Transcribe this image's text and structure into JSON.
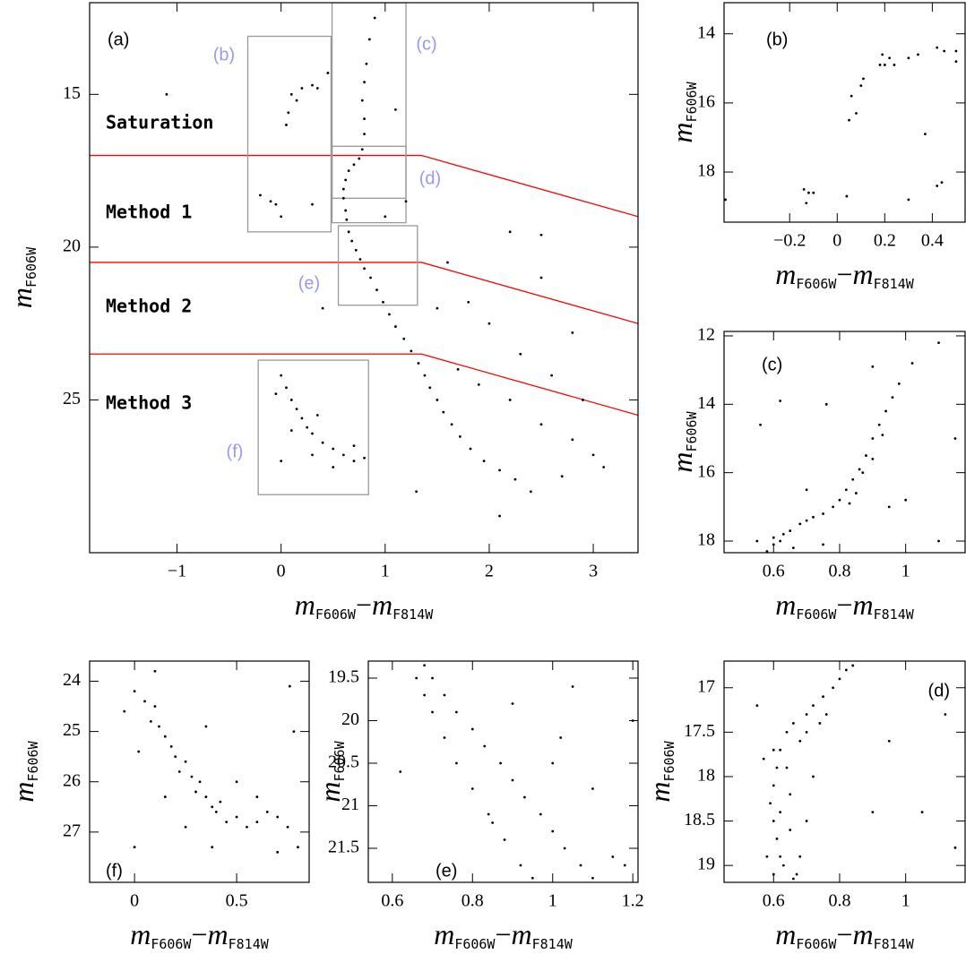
{
  "chart_data": [
    {
      "type": "scatter",
      "label": "(a)",
      "color": "#000000",
      "xlabel": [
        "m",
        "F606W",
        "−",
        "m",
        "F814W"
      ],
      "ylabel": [
        "m",
        "F606W"
      ],
      "xlim": [
        -1.84,
        3.43
      ],
      "ylim": [
        30,
        12
      ],
      "xticks": [
        {
          "value": -1,
          "label": "−1"
        },
        0,
        1,
        2,
        3
      ],
      "yticks": [
        15,
        20,
        25
      ],
      "annotations": [
        "Saturation",
        "Method 1",
        "Method 2",
        "Method 3"
      ],
      "boundary_color": "#ff0000",
      "boundaries": [
        {
          "x": [
            -1.84,
            1.35,
            3.43
          ],
          "y": [
            17,
            17,
            19
          ]
        },
        {
          "x": [
            -1.84,
            1.35,
            3.43
          ],
          "y": [
            20.5,
            20.5,
            22.5
          ]
        },
        {
          "x": [
            -1.84,
            1.35,
            3.43
          ],
          "y": [
            23.5,
            23.5,
            25.5
          ]
        }
      ],
      "box_color": "#999999",
      "box_label_color": "#9999ee",
      "boxes": [
        {
          "label": "(b)",
          "xlim": [
            -0.32,
            0.48
          ],
          "ylim": [
            19.5,
            13.1
          ]
        },
        {
          "label": "(c)",
          "xlim": [
            0.49,
            1.2
          ],
          "ylim": [
            19.2,
            12
          ]
        },
        {
          "label": "(d)",
          "xlim": [
            0.49,
            1.2
          ],
          "ylim": [
            18.4,
            16.7
          ]
        },
        {
          "label": "(e)",
          "xlim": [
            0.55,
            1.31
          ],
          "ylim": [
            21.9,
            19.3
          ]
        },
        {
          "label": "(f)",
          "xlim": [
            -0.22,
            0.84
          ],
          "ylim": [
            28.1,
            23.7
          ]
        }
      ],
      "x": [
        0.9,
        0.85,
        0.82,
        0.8,
        0.78,
        0.8,
        0.8,
        0.78,
        0.75,
        0.7,
        0.65,
        0.62,
        0.6,
        0.6,
        0.62,
        0.63,
        0.65,
        0.68,
        0.72,
        0.76,
        0.8,
        0.86,
        0.92,
        0.98,
        1.04,
        1.1,
        1.18,
        1.25,
        1.32,
        1.38,
        1.43,
        1.5,
        1.56,
        1.64,
        1.72,
        1.82,
        1.95,
        2.1,
        2.25,
        1.7,
        1.9,
        2.2,
        2.5,
        2.8,
        2.3,
        2.0,
        1.8,
        2.6,
        3.0,
        2.7,
        2.4,
        1.5,
        1.6,
        2.2,
        1.2,
        1.0,
        2.9,
        3.1,
        2.1,
        0.0,
        0.05,
        0.1,
        0.15,
        0.2,
        0.25,
        0.3,
        0.4,
        0.5,
        0.6,
        0.7,
        0.8,
        0.1,
        0.3,
        0.5,
        0.7,
        -0.05,
        0.35,
        0.0,
        0.1,
        0.15,
        0.2,
        0.3,
        0.35,
        0.05,
        0.07,
        -0.1,
        -0.05,
        0.0,
        0.3,
        0.45,
        -1.1,
        -0.2,
        0.4,
        1.1,
        2.5,
        1.3,
        2.8,
        2.5
      ],
      "y": [
        12.5,
        13.2,
        14.0,
        14.6,
        15.2,
        15.8,
        16.3,
        16.8,
        17.1,
        17.3,
        17.5,
        17.8,
        18.1,
        18.4,
        18.8,
        19.1,
        19.5,
        19.8,
        20.1,
        20.4,
        20.7,
        21.0,
        21.4,
        21.8,
        22.2,
        22.6,
        23.0,
        23.4,
        23.8,
        24.2,
        24.6,
        25.0,
        25.4,
        25.8,
        26.2,
        26.6,
        27.0,
        27.3,
        27.6,
        24.0,
        24.5,
        25.0,
        25.8,
        26.3,
        23.5,
        22.5,
        21.8,
        24.2,
        26.8,
        27.5,
        28.0,
        22.0,
        20.5,
        19.5,
        18.5,
        19.0,
        25.0,
        27.2,
        28.8,
        24.2,
        24.6,
        25.0,
        25.3,
        25.6,
        25.9,
        26.1,
        26.4,
        26.6,
        26.8,
        27.0,
        26.9,
        26.0,
        26.8,
        27.2,
        26.5,
        24.8,
        25.5,
        27.0,
        15.0,
        15.2,
        14.8,
        14.7,
        14.8,
        16.0,
        15.6,
        18.5,
        18.6,
        19.0,
        18.6,
        14.3,
        15.0,
        18.3,
        22.0,
        15.5,
        21.0,
        28.0,
        22.8,
        19.6
      ]
    },
    {
      "type": "scatter",
      "label": "(b)",
      "color": "#000000",
      "xlabel": [
        "m",
        "F606W",
        "−",
        "m",
        "F814W"
      ],
      "ylabel": [
        "m",
        "F606W"
      ],
      "xlim": [
        -0.476,
        0.538
      ],
      "ylim": [
        19.45,
        13.1
      ],
      "xticks": [
        {
          "value": -0.2,
          "label": "−0.2"
        },
        0,
        0.2,
        0.4
      ],
      "yticks": [
        14,
        16,
        18
      ],
      "x": [
        -0.47,
        -0.14,
        -0.12,
        -0.1,
        -0.13,
        0.04,
        0.05,
        0.06,
        0.08,
        0.1,
        0.11,
        0.18,
        0.19,
        0.2,
        0.22,
        0.24,
        0.3,
        0.34,
        0.37,
        0.42,
        0.44,
        0.42,
        0.45,
        0.5,
        0.3,
        0.5
      ],
      "y": [
        18.8,
        18.5,
        18.6,
        18.6,
        18.9,
        18.7,
        16.5,
        15.8,
        16.3,
        15.5,
        15.3,
        14.9,
        14.6,
        14.9,
        14.7,
        14.9,
        14.7,
        14.6,
        16.9,
        18.4,
        18.3,
        14.4,
        14.5,
        14.5,
        18.8,
        14.8
      ]
    },
    {
      "type": "scatter",
      "label": "(c)",
      "color": "#000000",
      "xlabel": [
        "m",
        "F606W",
        "−",
        "m",
        "F814W"
      ],
      "ylabel": [
        "m",
        "F606W"
      ],
      "xlim": [
        0.45,
        1.18
      ],
      "ylim": [
        18.34,
        11.87
      ],
      "xticks": [
        0.6,
        0.8,
        1
      ],
      "yticks": [
        12,
        14,
        16,
        18
      ],
      "x": [
        0.58,
        0.6,
        0.62,
        0.6,
        0.63,
        0.65,
        0.68,
        0.7,
        0.72,
        0.75,
        0.78,
        0.8,
        0.82,
        0.84,
        0.86,
        0.88,
        0.9,
        0.92,
        0.94,
        0.96,
        0.98,
        1.02,
        0.85,
        0.87,
        0.83,
        0.9,
        0.93,
        0.55,
        0.62,
        0.56,
        0.76,
        0.9,
        1.1,
        0.95,
        1.0,
        1.1,
        0.75,
        0.7,
        1.15,
        0.66
      ],
      "y": [
        18.3,
        18.1,
        18.0,
        17.9,
        17.8,
        17.7,
        17.5,
        17.4,
        17.3,
        17.2,
        17.0,
        16.8,
        16.5,
        16.2,
        15.9,
        15.5,
        15.0,
        14.6,
        14.2,
        13.8,
        13.4,
        12.8,
        16.6,
        16.0,
        16.9,
        15.6,
        14.9,
        18.0,
        13.9,
        14.6,
        14.0,
        12.9,
        12.2,
        17.0,
        16.8,
        18.0,
        18.1,
        16.5,
        15.0,
        18.2
      ]
    },
    {
      "type": "scatter",
      "label": "(d)",
      "color": "#000000",
      "xlabel": [
        "m",
        "F606W",
        "−",
        "m",
        "F814W"
      ],
      "ylabel": [
        "m",
        "F606W"
      ],
      "xlim": [
        0.45,
        1.18
      ],
      "ylim": [
        19.19,
        16.7
      ],
      "xticks": [
        0.6,
        0.8,
        1
      ],
      "yticks": [
        17,
        17.5,
        18,
        18.5,
        19
      ],
      "x": [
        0.6,
        0.62,
        0.61,
        0.6,
        0.59,
        0.6,
        0.61,
        0.62,
        0.64,
        0.66,
        0.65,
        0.63,
        0.66,
        0.68,
        0.7,
        0.72,
        0.75,
        0.78,
        0.8,
        0.82,
        0.7,
        0.74,
        0.68,
        0.55,
        0.57,
        0.72,
        0.7,
        0.9,
        0.95,
        1.05,
        1.15,
        1.12,
        0.65,
        0.62,
        0.58,
        0.64,
        0.76,
        0.84,
        0.6,
        0.67
      ],
      "y": [
        19.1,
        18.9,
        18.7,
        18.5,
        18.3,
        18.1,
        17.9,
        17.7,
        17.5,
        17.4,
        18.6,
        19.0,
        19.15,
        18.9,
        17.3,
        17.2,
        17.1,
        17.0,
        16.9,
        16.8,
        17.5,
        17.4,
        17.6,
        17.2,
        17.8,
        18.0,
        18.5,
        18.4,
        17.6,
        18.4,
        18.8,
        17.3,
        18.2,
        18.4,
        18.9,
        17.9,
        17.3,
        16.75,
        17.7,
        19.1
      ]
    },
    {
      "type": "scatter",
      "label": "(e)",
      "color": "#000000",
      "xlabel": [
        "m",
        "F606W",
        "−",
        "m",
        "F814W"
      ],
      "ylabel": [
        "m",
        "F606W"
      ],
      "xlim": [
        0.54,
        1.213
      ],
      "ylim": [
        21.9,
        19.3
      ],
      "xticks": [
        0.6,
        0.8,
        1,
        1.2
      ],
      "yticks": [
        19.5,
        20,
        20.5,
        21,
        21.5
      ],
      "x": [
        0.68,
        0.7,
        0.73,
        0.76,
        0.8,
        0.83,
        0.87,
        0.9,
        0.93,
        0.97,
        1.0,
        1.03,
        1.07,
        1.1,
        0.66,
        0.68,
        0.7,
        0.73,
        0.76,
        0.8,
        0.84,
        0.88,
        0.92,
        0.95,
        0.9,
        1.0,
        1.1,
        1.15,
        1.2,
        1.05,
        0.85,
        1.18,
        0.62,
        1.02
      ],
      "y": [
        19.35,
        19.5,
        19.7,
        19.9,
        20.1,
        20.3,
        20.5,
        20.7,
        20.9,
        21.1,
        21.3,
        21.5,
        21.7,
        21.85,
        19.5,
        19.7,
        19.9,
        20.2,
        20.5,
        20.8,
        21.1,
        21.4,
        21.7,
        21.85,
        19.8,
        20.5,
        20.8,
        21.6,
        20.0,
        19.6,
        21.2,
        21.7,
        20.6,
        20.2
      ]
    },
    {
      "type": "scatter",
      "label": "(f)",
      "color": "#000000",
      "xlabel": [
        "m",
        "F606W",
        "−",
        "m",
        "F814W"
      ],
      "ylabel": [
        "m",
        "F606W"
      ],
      "xlim": [
        -0.22,
        0.855
      ],
      "ylim": [
        28.0,
        23.6
      ],
      "xticks": [
        0,
        0.5
      ],
      "yticks": [
        24,
        25,
        26,
        27
      ],
      "x": [
        -0.05,
        0.0,
        0.05,
        0.08,
        0.1,
        0.12,
        0.15,
        0.18,
        0.2,
        0.22,
        0.25,
        0.28,
        0.3,
        0.32,
        0.35,
        0.38,
        0.4,
        0.42,
        0.45,
        0.5,
        0.55,
        0.6,
        0.65,
        0.7,
        0.75,
        0.8,
        0.78,
        0.76,
        0.35,
        0.02,
        0.15,
        0.25,
        0.5,
        0.38,
        0.0,
        0.1,
        0.6,
        0.7
      ],
      "y": [
        24.6,
        24.2,
        24.4,
        24.8,
        24.5,
        24.9,
        25.1,
        25.3,
        25.5,
        25.8,
        25.6,
        25.9,
        26.2,
        26.0,
        26.3,
        26.5,
        26.6,
        26.4,
        26.8,
        26.7,
        26.9,
        26.8,
        26.6,
        26.7,
        26.9,
        27.3,
        25.0,
        24.1,
        24.9,
        25.4,
        26.3,
        26.9,
        26.0,
        27.3,
        27.3,
        23.8,
        26.3,
        27.4
      ]
    }
  ]
}
